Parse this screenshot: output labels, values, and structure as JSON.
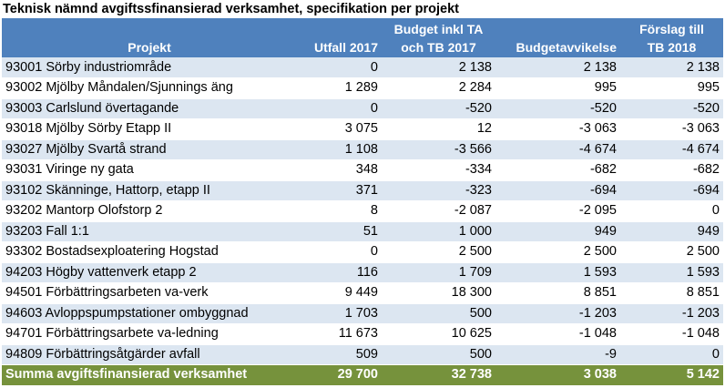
{
  "title": "Teknisk nämnd avgiftssfinansierad verksamhet, specifikation per projekt",
  "headers": {
    "project": "Projekt",
    "utfall": "Utfall 2017",
    "budget_line1": "Budget inkl TA",
    "budget_line2": "och TB 2017",
    "deviation": "Budgetavvikelse",
    "proposal_line1": "Förslag till",
    "proposal_line2": "TB 2018"
  },
  "rows": [
    {
      "project": "93001 Sörby industriområde",
      "utfall": "0",
      "budget": "2 138",
      "deviation": "2 138",
      "proposal": "2 138"
    },
    {
      "project": "93002 Mjölby Måndalen/Sjunnings äng",
      "utfall": "1 289",
      "budget": "2 284",
      "deviation": "995",
      "proposal": "995"
    },
    {
      "project": "93003 Carlslund övertagande",
      "utfall": "0",
      "budget": "-520",
      "deviation": "-520",
      "proposal": "-520"
    },
    {
      "project": "93018 Mjölby Sörby Etapp II",
      "utfall": "3 075",
      "budget": "12",
      "deviation": "-3 063",
      "proposal": "-3 063"
    },
    {
      "project": "93027 Mjölby Svartå strand",
      "utfall": "1 108",
      "budget": "-3 566",
      "deviation": "-4 674",
      "proposal": "-4 674"
    },
    {
      "project": "93031 Viringe ny gata",
      "utfall": "348",
      "budget": "-334",
      "deviation": "-682",
      "proposal": "-682"
    },
    {
      "project": "93102 Skänninge, Hattorp, etapp II",
      "utfall": "371",
      "budget": "-323",
      "deviation": "-694",
      "proposal": "-694"
    },
    {
      "project": "93202 Mantorp Olofstorp 2",
      "utfall": "8",
      "budget": "-2 087",
      "deviation": "-2 095",
      "proposal": "0"
    },
    {
      "project": "93203 Fall 1:1",
      "utfall": "51",
      "budget": "1 000",
      "deviation": "949",
      "proposal": "949"
    },
    {
      "project": "93302 Bostadsexploatering Hogstad",
      "utfall": "0",
      "budget": "2 500",
      "deviation": "2 500",
      "proposal": "2 500"
    },
    {
      "project": "94203 Högby vattenverk etapp 2",
      "utfall": "116",
      "budget": "1 709",
      "deviation": "1 593",
      "proposal": "1 593"
    },
    {
      "project": "94501 Förbättringsarbeten va-verk",
      "utfall": "9 449",
      "budget": "18 300",
      "deviation": "8 851",
      "proposal": "8 851"
    },
    {
      "project": "94603 Avloppspumpstationer ombyggnad",
      "utfall": "1 703",
      "budget": "500",
      "deviation": "-1 203",
      "proposal": "-1 203"
    },
    {
      "project": "94701 Förbättringsarbete va-ledning",
      "utfall": "11 673",
      "budget": "10 625",
      "deviation": "-1 048",
      "proposal": "-1 048"
    },
    {
      "project": "94809 Förbättringsåtgärder avfall",
      "utfall": "509",
      "budget": "500",
      "deviation": "-9",
      "proposal": "0"
    }
  ],
  "total": {
    "project": "Summa avgiftsfinansierad verksamhet",
    "utfall": "29 700",
    "budget": "32 738",
    "deviation": "3 038",
    "proposal": "5 142"
  }
}
